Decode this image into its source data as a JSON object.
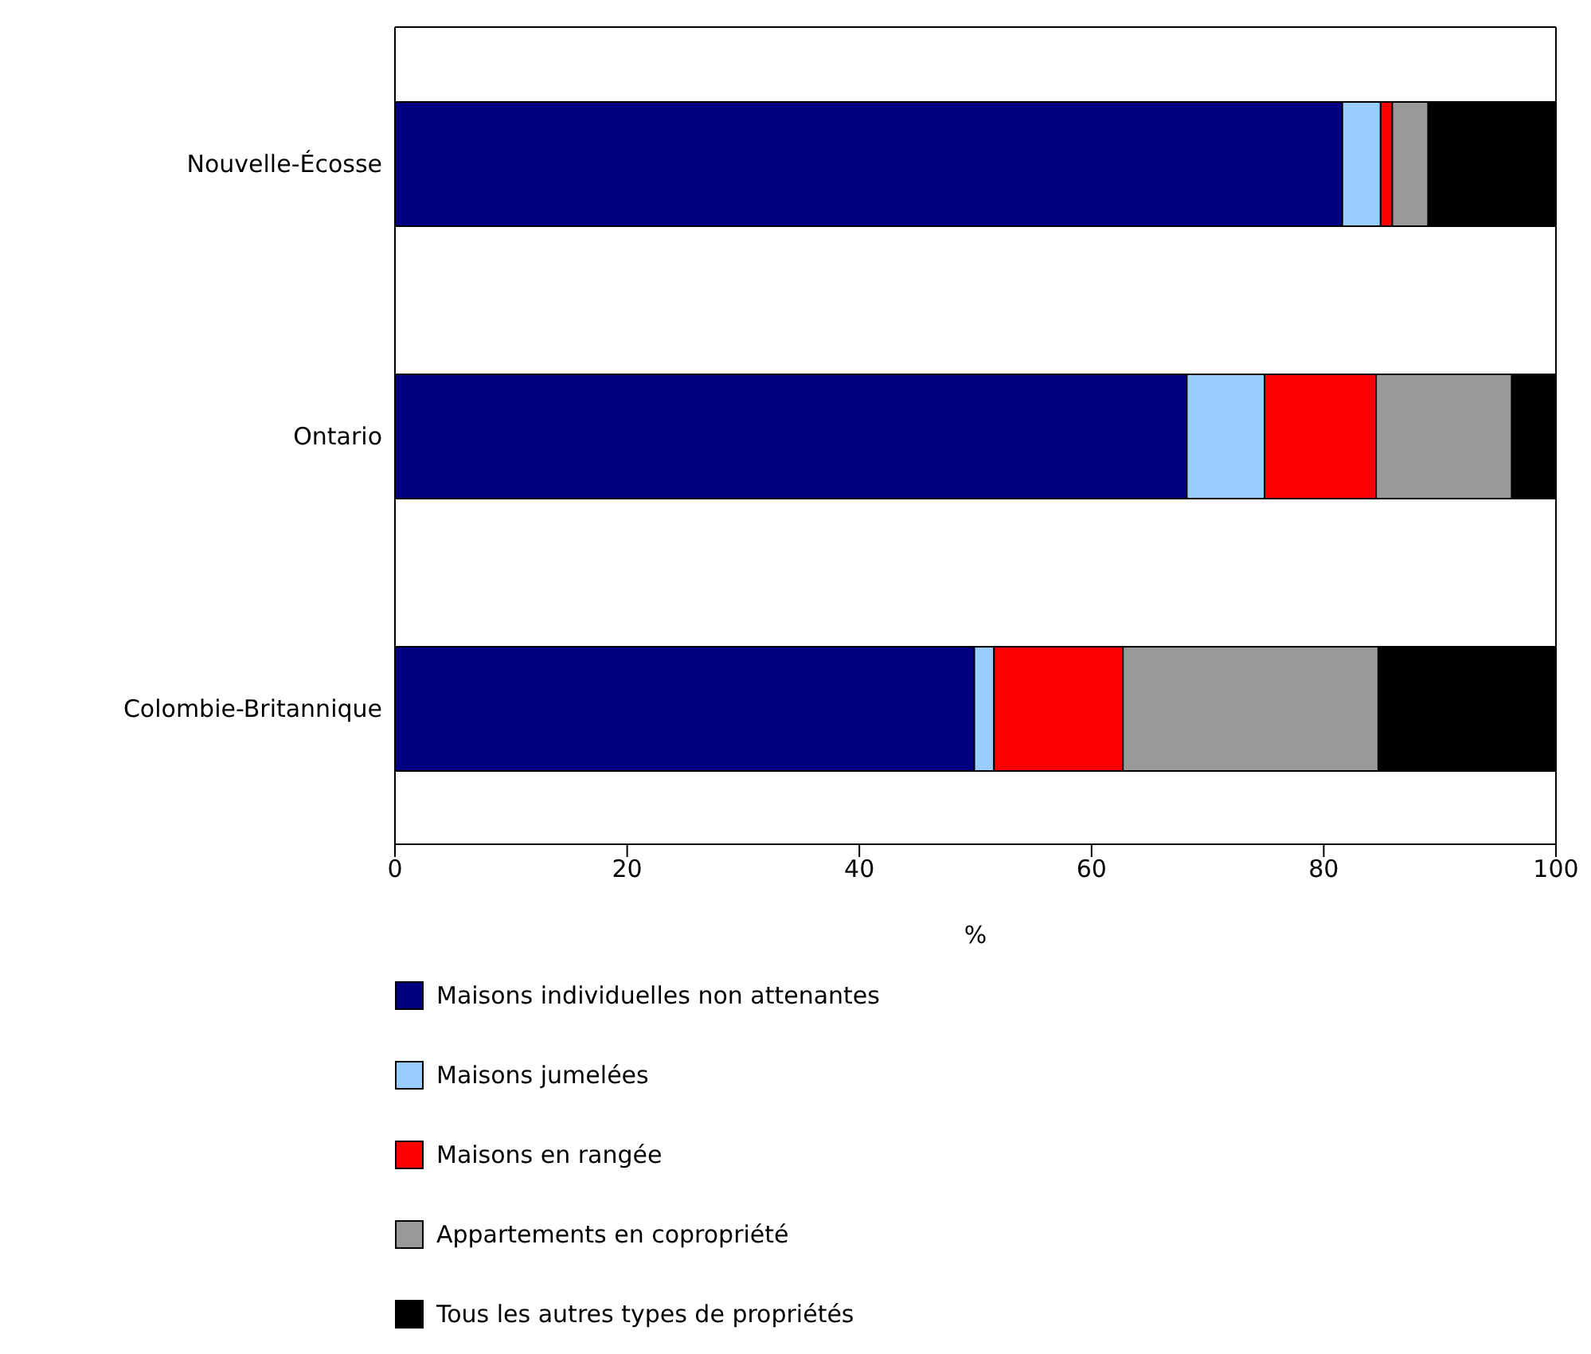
{
  "chart_data": {
    "type": "bar",
    "orientation": "horizontal",
    "stacked": true,
    "xlabel": "%",
    "categories": [
      "Nouvelle-Écosse",
      "Ontario",
      "Colombie-Britannique"
    ],
    "series": [
      {
        "name": "Maisons individuelles non attenantes",
        "color": "#000080",
        "values": [
          81.6,
          68.2,
          49.9
        ]
      },
      {
        "name": "Maisons jumelées",
        "color": "#99ccff",
        "values": [
          3.3,
          6.7,
          1.7
        ]
      },
      {
        "name": "Maisons en rangée",
        "color": "#ff0000",
        "values": [
          1.0,
          9.6,
          11.1
        ]
      },
      {
        "name": "Appartements en copropriété",
        "color": "#999999",
        "values": [
          3.1,
          11.7,
          22.0
        ]
      },
      {
        "name": "Tous les autres types de propriétés",
        "color": "#000000",
        "values": [
          11.0,
          3.8,
          15.3
        ]
      }
    ],
    "xlim": [
      0,
      100
    ],
    "xticks": [
      0,
      20,
      40,
      60,
      80,
      100
    ],
    "grid": false,
    "legend": "bottom"
  }
}
